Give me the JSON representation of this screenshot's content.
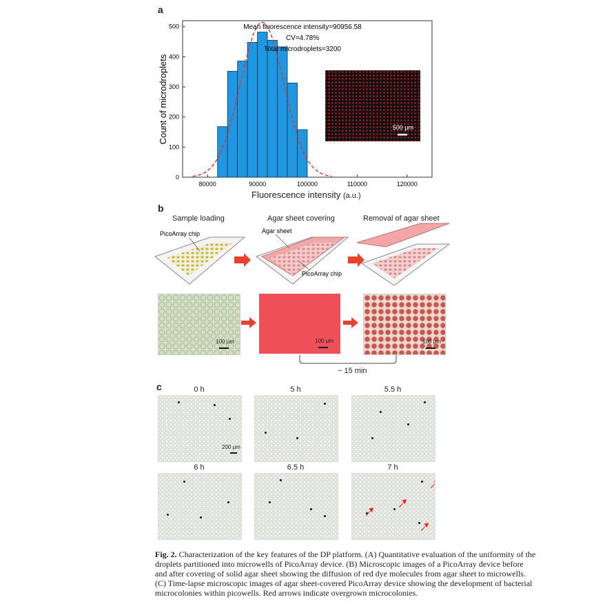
{
  "panel_a": {
    "letter": "a",
    "annotation_lines": [
      "Mean fluorescence intensity=90956.58",
      "CV=4.78%",
      "Total microdroplets=3200"
    ],
    "inset_scale": "500 μm",
    "chart_data": {
      "type": "bar",
      "xlabel": "Fluorescence intensity",
      "xlabel_unit": "(a.u.)",
      "ylabel": "Count of microdroplets",
      "xlim": [
        75000,
        125000
      ],
      "ylim": [
        0,
        520
      ],
      "x_ticks": [
        80000,
        90000,
        100000,
        110000,
        120000
      ],
      "y_ticks": [
        0,
        100,
        200,
        300,
        400,
        500
      ],
      "bin_width": 2000,
      "bin_centers": [
        83000,
        85000,
        87000,
        89000,
        91000,
        93000,
        95000,
        97000,
        99000
      ],
      "values": [
        168,
        352,
        386,
        448,
        482,
        455,
        433,
        313,
        158
      ],
      "fit_curve": {
        "type": "gaussian",
        "mean": 90956.58,
        "sigma": 4350,
        "peak": 515
      },
      "bar_color": "#1e96e0",
      "fit_color": "#e53030"
    }
  },
  "panel_b": {
    "letter": "b",
    "step_titles": [
      "Sample loading",
      "Agar sheet covering",
      "Removal of agar sheet"
    ],
    "labels": {
      "chip1": "PicoArray chip",
      "agar": "Agar sheet",
      "chip2": "PicoArray chip"
    },
    "scales": [
      "100 μm",
      "100 μm",
      "100 μm"
    ],
    "time_label": "~ 15 min"
  },
  "panel_c": {
    "letter": "c",
    "times": [
      "0 h",
      "5 h",
      "5.5 h",
      "6 h",
      "6.5 h",
      "7 h"
    ],
    "scale": "200 μm"
  },
  "caption": {
    "label": "Fig. 2.",
    "text": "Characterization of the key features of the DP platform. (A) Quantitative evaluation of the uniformity of the droplets partitioned into microwells of PicoArray device. (B) Microscopic images of a PicoArray device before and after covering of solid agar sheet showing the diffusion of red dye molecules from agar sheet to microwells. (C) Time-lapse microscopic images of agar sheet-covered PicoArray device showing the development of bacterial microcolonies within picowells. Red arrows indicate overgrown microcolonies."
  }
}
